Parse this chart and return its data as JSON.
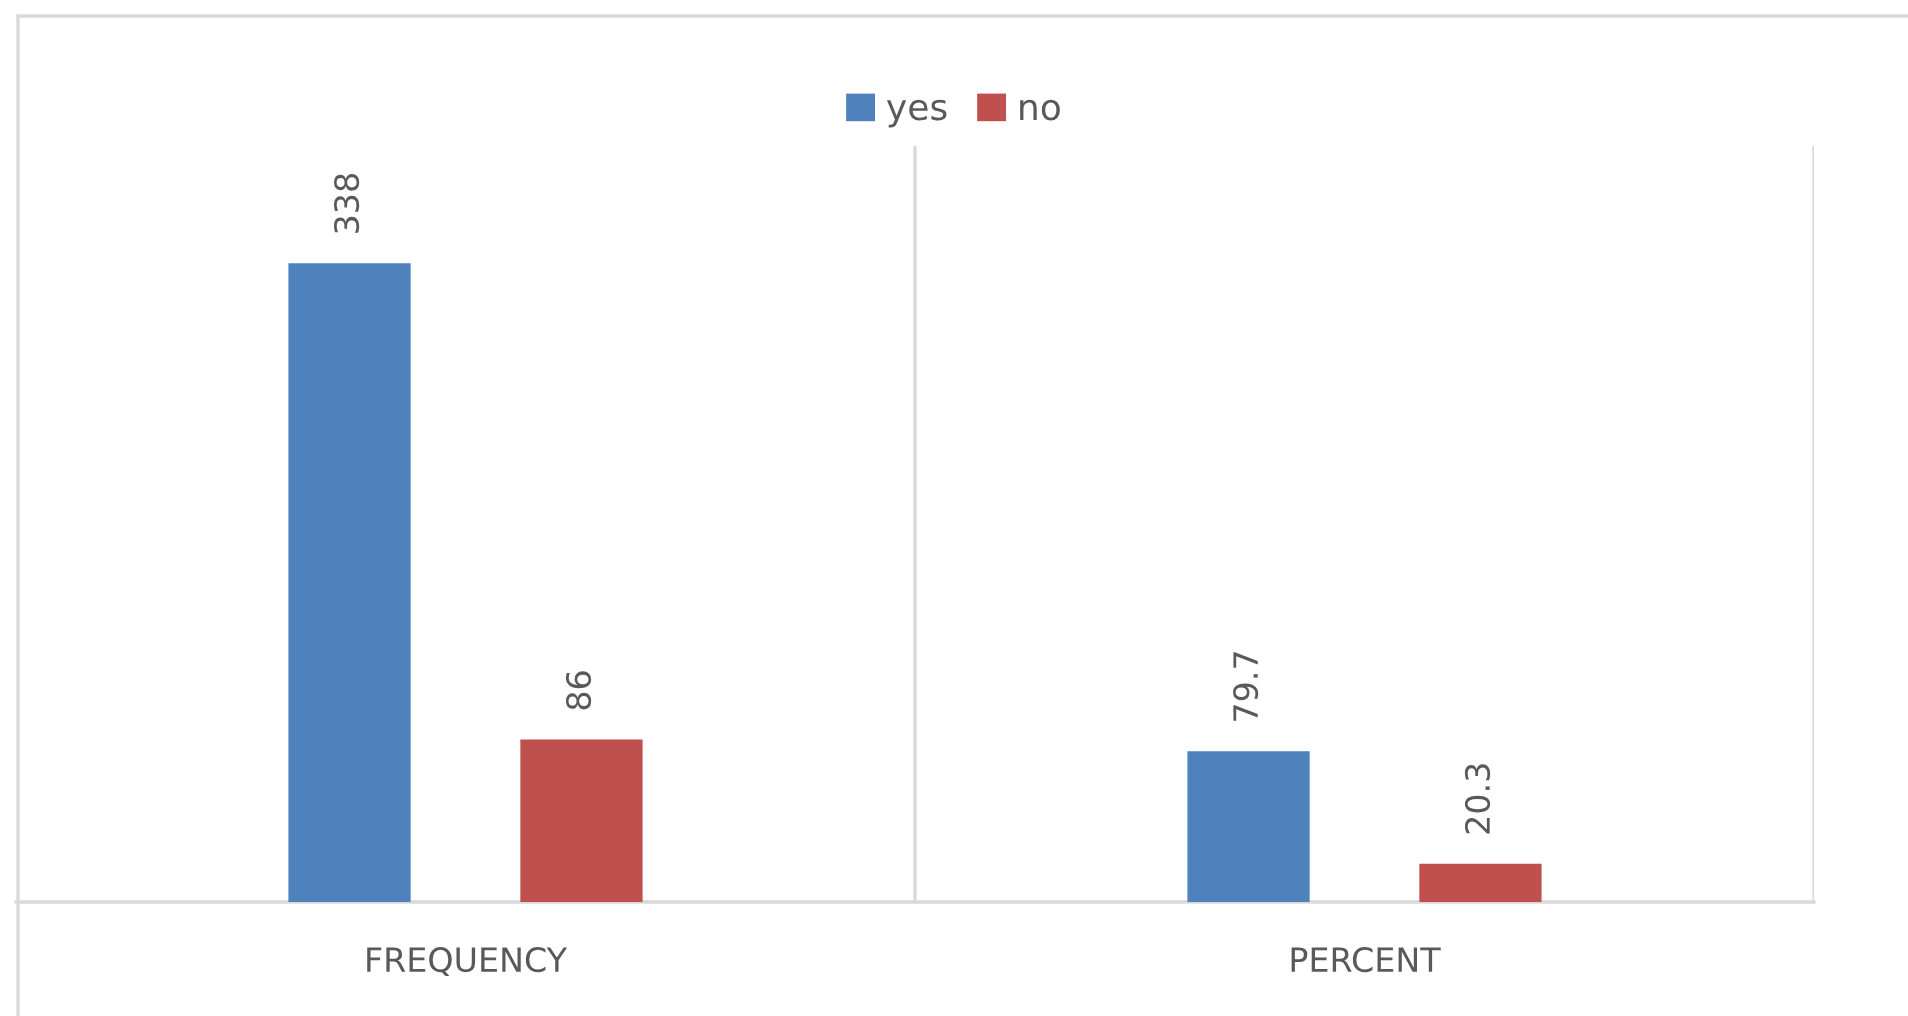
{
  "chart_data": {
    "type": "bar",
    "categories": [
      "FREQUENCY",
      "PERCENT"
    ],
    "series": [
      {
        "name": "yes",
        "color": "#4f81bd",
        "values": [
          338,
          79.7
        ]
      },
      {
        "name": "no",
        "color": "#c0504d",
        "values": [
          86,
          20.3
        ]
      }
    ],
    "ylim": [
      0,
      400
    ],
    "tick_labels": "x",
    "data_labels": true,
    "grid": "x",
    "legend": "top"
  }
}
